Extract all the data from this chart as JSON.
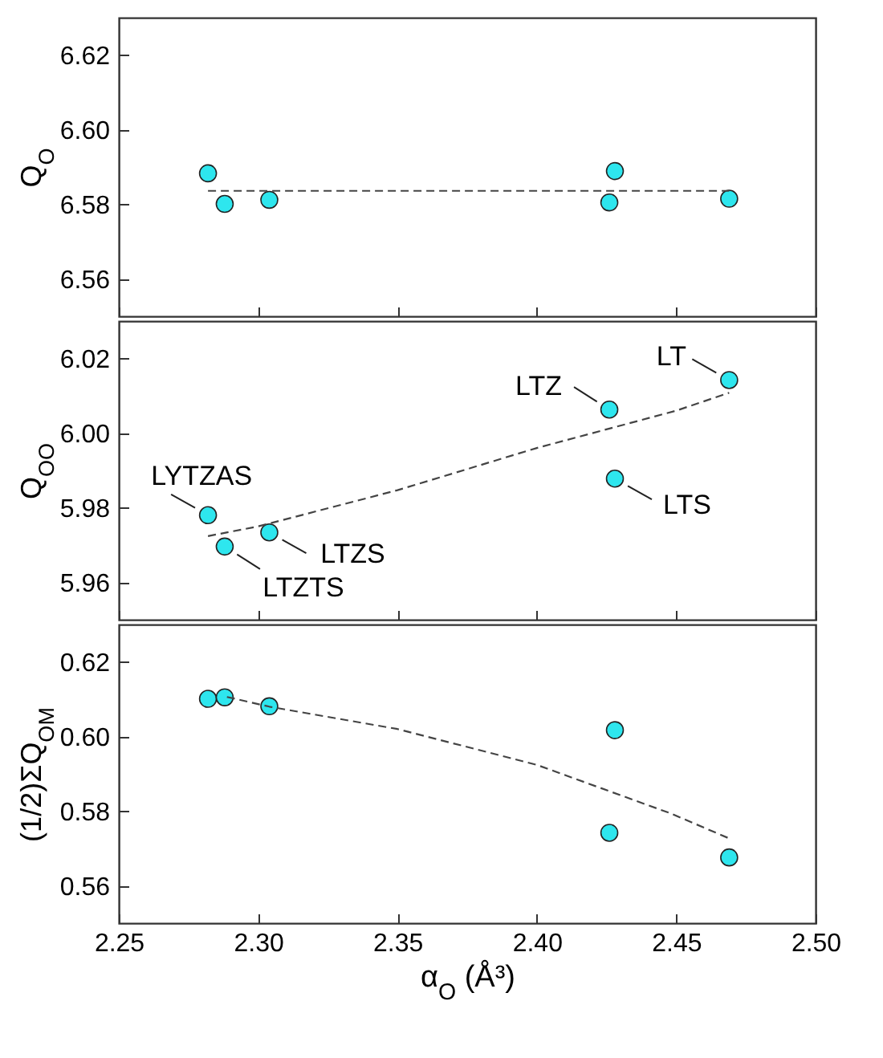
{
  "chart_data": [
    {
      "type": "scatter",
      "ylabel": "Q$_{O}$",
      "xlim": [
        2.25,
        2.5
      ],
      "xticks": [
        2.25,
        2.3,
        2.35,
        2.4,
        2.45,
        2.5
      ],
      "ylim": [
        6.55,
        6.63
      ],
      "yticks": [
        6.56,
        6.58,
        {
          "value": 6.6,
          "label": "6.60"
        },
        6.62
      ],
      "tick_labels": "y",
      "grid": false,
      "legend": false,
      "series": [
        {
          "type": "scatter",
          "marker": "circle",
          "color": "#2ee6ee",
          "x": [
            2.282,
            2.288,
            2.304,
            2.426,
            2.428,
            2.469
          ],
          "values": [
            6.5883,
            6.5801,
            6.5812,
            6.5805,
            6.5889,
            6.5815
          ]
        },
        {
          "type": "line",
          "marker": "none",
          "line_style": "dashed",
          "color": "#444444",
          "x": [
            2.282,
            2.469
          ],
          "values": [
            6.5836,
            6.5836
          ]
        }
      ]
    },
    {
      "type": "scatter",
      "ylabel": "Q$_{OO}$",
      "xlim": [
        2.25,
        2.5
      ],
      "xticks": [
        2.25,
        2.3,
        2.35,
        2.4,
        2.45,
        2.5
      ],
      "ylim": [
        5.95,
        6.03
      ],
      "yticks": [
        5.96,
        5.98,
        {
          "value": 6.0,
          "label": "6.00"
        },
        6.02
      ],
      "tick_labels": "y",
      "grid": false,
      "legend": false,
      "series": [
        {
          "type": "scatter",
          "marker": "circle",
          "color": "#2ee6ee",
          "x": [
            2.282,
            2.288,
            2.304,
            2.426,
            2.428,
            2.469
          ],
          "values": [
            5.978,
            5.9696,
            5.9734,
            6.0063,
            5.9878,
            6.0142
          ]
        },
        {
          "type": "line",
          "marker": "none",
          "line_style": "dashed",
          "color": "#444444",
          "x": [
            2.282,
            2.3,
            2.35,
            2.4,
            2.45,
            2.469
          ],
          "values": [
            5.9724,
            5.975,
            5.9847,
            5.996,
            6.006,
            6.0108
          ]
        }
      ],
      "annotations": [
        {
          "text": "LYTZAS",
          "x": 2.282,
          "y": 5.978
        },
        {
          "text": "LTZTS",
          "x": 2.288,
          "y": 5.9696
        },
        {
          "text": "LTZS",
          "x": 2.304,
          "y": 5.9734
        },
        {
          "text": "LTZ",
          "x": 2.426,
          "y": 6.0063
        },
        {
          "text": "LTS",
          "x": 2.428,
          "y": 5.9878
        },
        {
          "text": "LT",
          "x": 2.469,
          "y": 6.0142
        }
      ]
    },
    {
      "type": "scatter",
      "ylabel": "(1/2)ΣQ$_{OM}$",
      "xlabel": "α$_{O}$ (Å³)",
      "xlim": [
        2.25,
        2.5
      ],
      "xticks": [
        2.25,
        {
          "value": 2.3,
          "label": "2.30"
        },
        2.35,
        {
          "value": 2.4,
          "label": "2.40"
        },
        2.45,
        {
          "value": 2.5,
          "label": "2.50"
        }
      ],
      "ylim": [
        0.55,
        0.63
      ],
      "yticks": [
        0.56,
        0.58,
        {
          "value": 0.6,
          "label": "0.60"
        },
        0.62
      ],
      "grid": false,
      "legend": false,
      "series": [
        {
          "type": "scatter",
          "marker": "circle",
          "color": "#2ee6ee",
          "x": [
            2.282,
            2.288,
            2.304,
            2.426,
            2.428,
            2.469
          ],
          "values": [
            0.6101,
            0.6105,
            0.6081,
            0.5742,
            0.6017,
            0.5676
          ]
        },
        {
          "type": "line",
          "marker": "none",
          "line_style": "dashed",
          "color": "#444444",
          "x": [
            2.2888,
            2.304,
            2.35,
            2.4,
            2.448,
            2.469
          ],
          "values": [
            0.6106,
            0.608,
            0.602,
            0.5924,
            0.5794,
            0.5727
          ]
        }
      ]
    }
  ]
}
